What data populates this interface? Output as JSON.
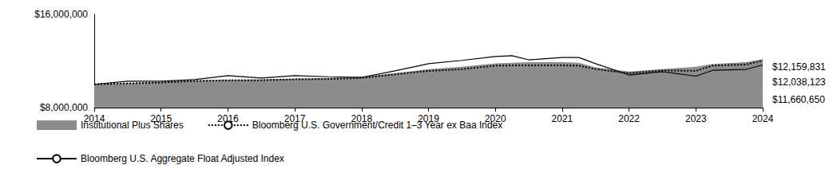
{
  "chart_data": {
    "type": "line",
    "x": [
      2014,
      2014.5,
      2015,
      2015.5,
      2016,
      2016.5,
      2017,
      2017.5,
      2018,
      2018.5,
      2019,
      2019.5,
      2020,
      2020.25,
      2020.5,
      2021,
      2021.25,
      2021.5,
      2022,
      2022.5,
      2023,
      2023.25,
      2023.75,
      2024
    ],
    "xlim": [
      2014,
      2024
    ],
    "xticks": [
      2014,
      2015,
      2016,
      2017,
      2018,
      2019,
      2020,
      2021,
      2022,
      2023,
      2024
    ],
    "ylim": [
      8000000,
      16000000
    ],
    "yticks": [
      {
        "value": 8000000,
        "label": "$8,000,000"
      },
      {
        "value": 16000000,
        "label": "$16,000,000"
      }
    ],
    "grid": false,
    "legend": "bottom",
    "series": [
      {
        "name": "Institutional Plus Shares",
        "type": "area",
        "color": "#8c8c8c",
        "values": [
          10000000,
          10100000,
          10200000,
          10320000,
          10400000,
          10420000,
          10500000,
          10550000,
          10650000,
          10950000,
          11300000,
          11500000,
          11800000,
          11850000,
          11900000,
          11900000,
          11850000,
          11450000,
          11100000,
          11300000,
          11500000,
          11750000,
          11900000,
          12159831
        ],
        "value_labels": [
          null,
          null,
          null,
          null,
          null,
          null,
          null,
          null,
          null,
          null,
          null,
          null,
          null,
          null,
          null,
          null,
          null,
          null,
          null,
          null,
          null,
          null,
          null,
          "$12,159,831"
        ]
      },
      {
        "name": "Bloomberg U.S. Government/Credit 1–3 Year ex Baa Index",
        "type": "line",
        "line_style": "dotted",
        "color": "#000000",
        "values": [
          10000000,
          10080000,
          10150000,
          10280000,
          10350000,
          10350000,
          10420000,
          10450000,
          10550000,
          10850000,
          11150000,
          11300000,
          11600000,
          11620000,
          11620000,
          11620000,
          11600000,
          11300000,
          10950000,
          11200000,
          11150000,
          11600000,
          11700000,
          12038123
        ],
        "value_labels": [
          null,
          null,
          null,
          null,
          null,
          null,
          null,
          null,
          null,
          null,
          null,
          null,
          null,
          null,
          null,
          null,
          null,
          null,
          null,
          null,
          null,
          null,
          null,
          "$12,038,123"
        ]
      },
      {
        "name": "Bloomberg U.S. Aggregate Float Adjusted Index",
        "type": "line",
        "line_style": "solid",
        "color": "#000000",
        "values": [
          10000000,
          10270000,
          10260000,
          10400000,
          10740000,
          10540000,
          10750000,
          10650000,
          10600000,
          11150000,
          11770000,
          12050000,
          12380000,
          12450000,
          12100000,
          12300000,
          12300000,
          11770000,
          10800000,
          11080000,
          10700000,
          11200000,
          11280000,
          11660650
        ],
        "value_labels": [
          null,
          null,
          null,
          null,
          null,
          null,
          null,
          null,
          null,
          null,
          null,
          null,
          null,
          null,
          null,
          null,
          null,
          null,
          null,
          null,
          null,
          null,
          null,
          "$11,660,650"
        ]
      }
    ]
  }
}
